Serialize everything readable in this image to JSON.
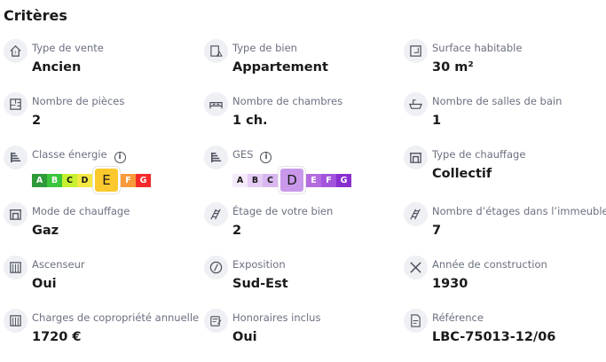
{
  "title": "Critères",
  "items": [
    {
      "icon": "house-question-icon",
      "label": "Type de vente",
      "value": "Ancien"
    },
    {
      "icon": "building-icon",
      "label": "Type de bien",
      "value": "Appartement"
    },
    {
      "icon": "surface-icon",
      "label": "Surface habitable",
      "value": "30 m²"
    },
    {
      "icon": "floorplan-icon",
      "label": "Nombre de pièces",
      "value": "2"
    },
    {
      "icon": "bed-icon",
      "label": "Nombre de chambres",
      "value": "1 ch."
    },
    {
      "icon": "bathtub-icon",
      "label": "Nombre de salles de bain",
      "value": "1"
    },
    {
      "icon": "energy-scale-icon",
      "label": "Classe énergie",
      "info": "i",
      "scale": {
        "letters": [
          "A",
          "B",
          "C",
          "D",
          "E",
          "F",
          "G"
        ],
        "selected": "E",
        "colors": [
          "#2e9a3a",
          "#3bc63b",
          "#c6f02e",
          "#f5e843",
          "#fbc92e",
          "#f99a3a",
          "#f52a2a"
        ],
        "text_colors": [
          "#fff",
          "#fff",
          "#1a1a1a",
          "#1a1a1a",
          "#1a1a1a",
          "#fff",
          "#fff"
        ]
      }
    },
    {
      "icon": "ges-scale-icon",
      "label": "GES",
      "info": "i",
      "scale": {
        "letters": [
          "A",
          "B",
          "C",
          "D",
          "E",
          "F",
          "G"
        ],
        "selected": "D",
        "colors": [
          "#f5eafa",
          "#e6cdf5",
          "#d8b7f0",
          "#c998ea",
          "#b46be0",
          "#a353dc",
          "#8a2fcf"
        ],
        "text_colors": [
          "#1a1a1a",
          "#1a1a1a",
          "#1a1a1a",
          "#1a1a1a",
          "#fff",
          "#fff",
          "#fff"
        ]
      }
    },
    {
      "icon": "fireplace-icon",
      "label": "Type de chauffage",
      "value": "Collectif"
    },
    {
      "icon": "fireplace-icon",
      "label": "Mode de chauffage",
      "value": "Gaz"
    },
    {
      "icon": "stairs-icon",
      "label": "Étage de votre bien",
      "value": "2"
    },
    {
      "icon": "stairs-icon",
      "label": "Nombre d’étages dans l’immeuble",
      "value": "7"
    },
    {
      "icon": "elevator-icon",
      "label": "Ascenseur",
      "value": "Oui"
    },
    {
      "icon": "compass-icon",
      "label": "Exposition",
      "value": "Sud-Est"
    },
    {
      "icon": "tools-icon",
      "label": "Année de construction",
      "value": "1930"
    },
    {
      "icon": "elevator-icon",
      "label": "Charges de copropriété annuelle",
      "value": "1720 €"
    },
    {
      "icon": "fees-icon",
      "label": "Honoraires inclus",
      "value": "Oui"
    },
    {
      "icon": "document-icon",
      "label": "Référence",
      "value": "LBC-75013-12/06"
    }
  ]
}
